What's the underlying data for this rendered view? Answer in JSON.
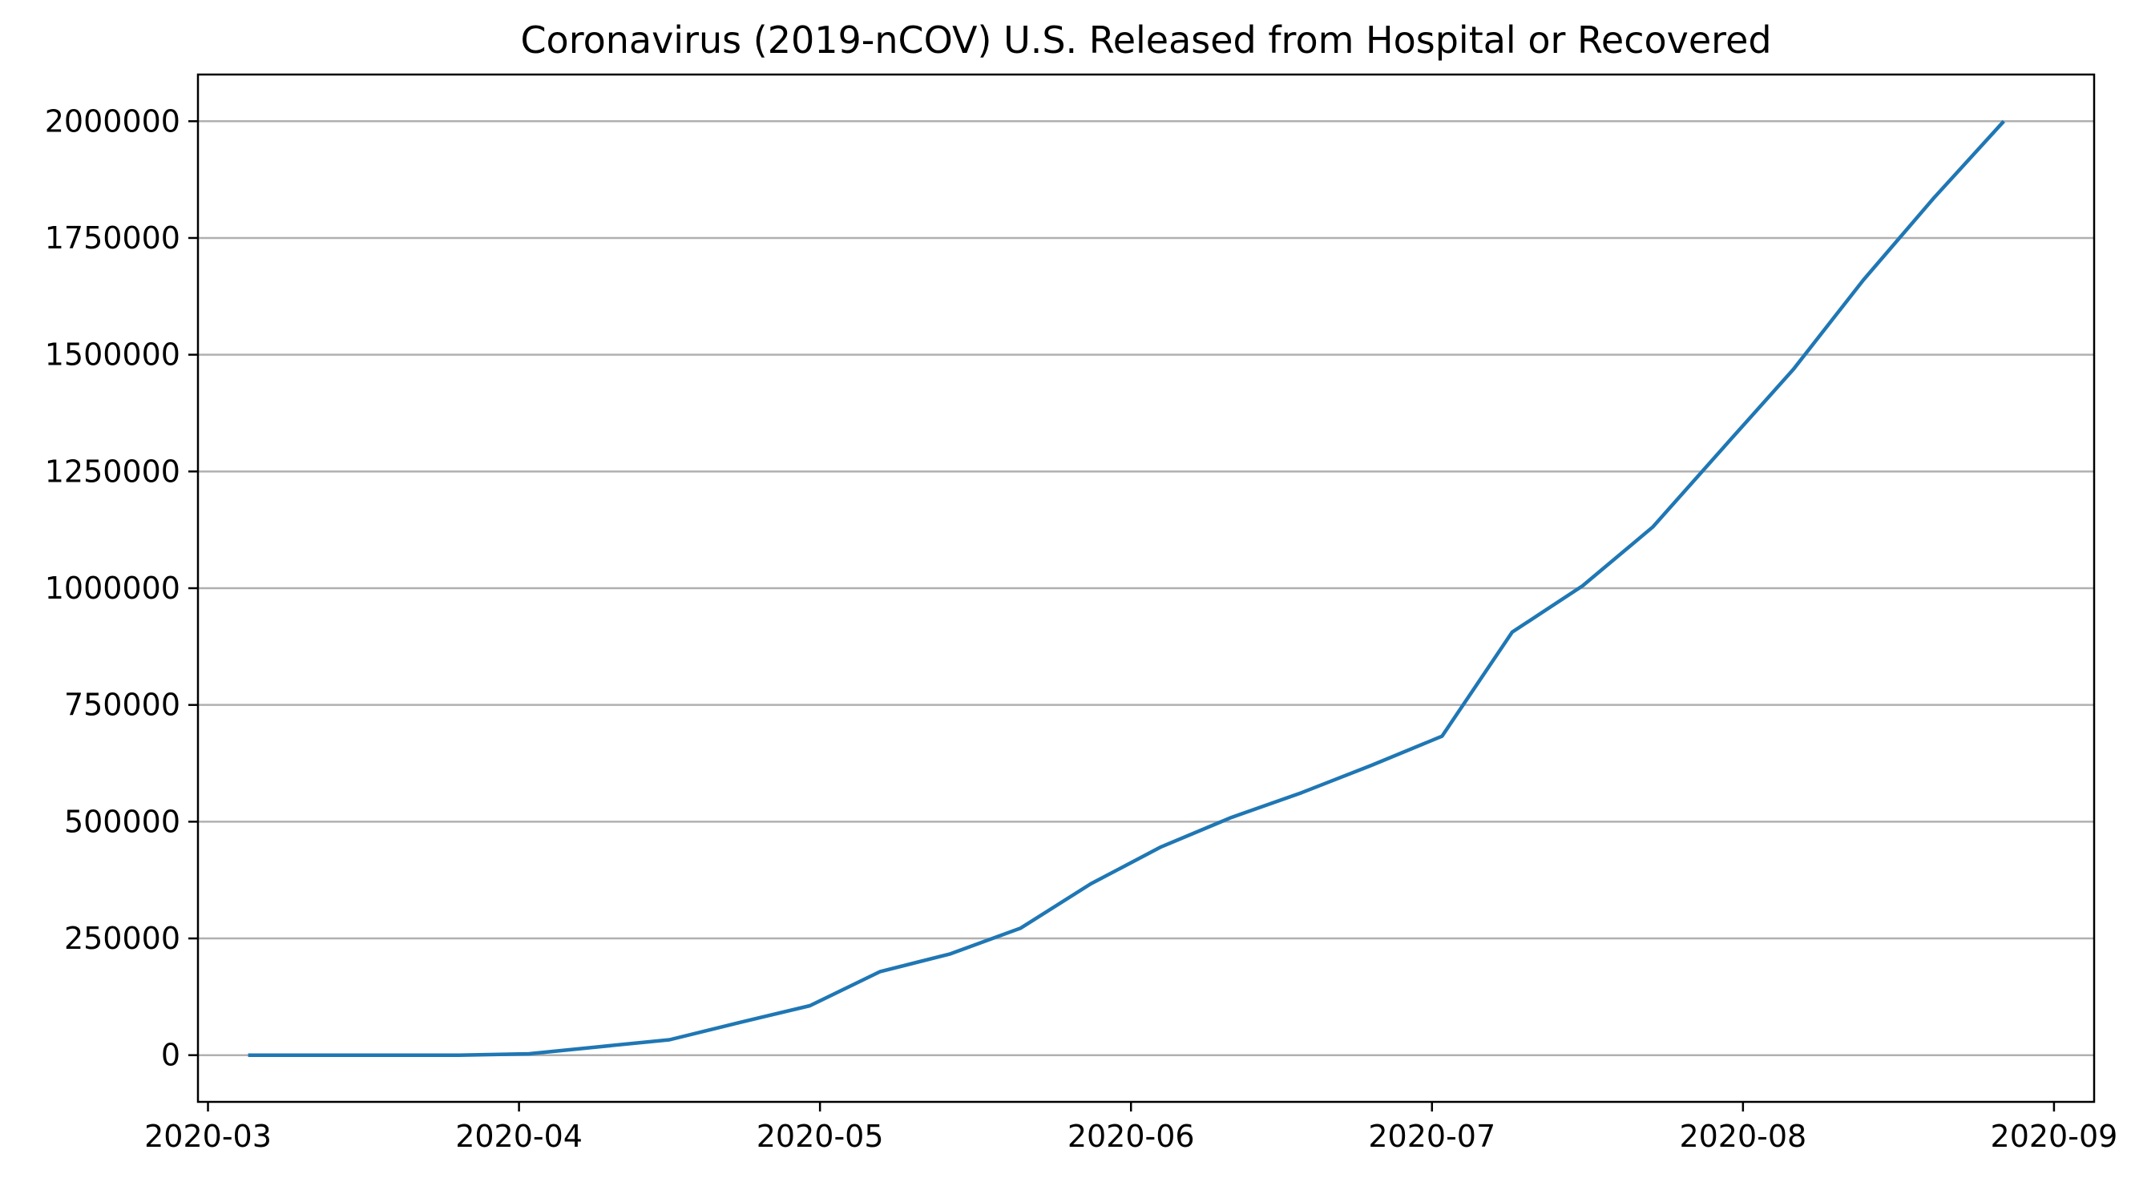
{
  "chart_data": {
    "type": "line",
    "title": "Coronavirus (2019-nCOV) U.S. Released from Hospital or Recovered",
    "xlabel": "",
    "ylabel": "",
    "x_axis": "date",
    "xlim": [
      "2020-02-29",
      "2020-09-05"
    ],
    "ylim": [
      -100000,
      2100000
    ],
    "x_ticks": [
      "2020-03-01",
      "2020-04-01",
      "2020-05-01",
      "2020-06-01",
      "2020-07-01",
      "2020-08-01",
      "2020-09-01"
    ],
    "x_tick_labels": [
      "2020-03",
      "2020-04",
      "2020-05",
      "2020-06",
      "2020-07",
      "2020-08",
      "2020-09"
    ],
    "y_ticks": [
      0,
      250000,
      500000,
      750000,
      1000000,
      1250000,
      1500000,
      1750000,
      2000000
    ],
    "y_tick_labels": [
      "0",
      "250000",
      "500000",
      "750000",
      "1000000",
      "1250000",
      "1500000",
      "1750000",
      "2000000"
    ],
    "grid": "horizontal",
    "legend": "none",
    "series": [
      {
        "color": "#1f77b4",
        "x": [
          "2020-03-05",
          "2020-03-12",
          "2020-03-19",
          "2020-03-26",
          "2020-04-02",
          "2020-04-09",
          "2020-04-16",
          "2020-04-23",
          "2020-04-30",
          "2020-05-07",
          "2020-05-14",
          "2020-05-21",
          "2020-05-28",
          "2020-06-04",
          "2020-06-11",
          "2020-06-18",
          "2020-06-25",
          "2020-07-02",
          "2020-07-09",
          "2020-07-16",
          "2020-07-23",
          "2020-07-30",
          "2020-08-06",
          "2020-08-13",
          "2020-08-20",
          "2020-08-27"
        ],
        "values": [
          0,
          0,
          0,
          0,
          3000,
          18000,
          33000,
          70000,
          106000,
          179000,
          217000,
          272000,
          367000,
          446000,
          509000,
          562000,
          621000,
          683000,
          906000,
          1005000,
          1131000,
          1300000,
          1468000,
          1660000,
          1835000,
          2000000
        ]
      }
    ]
  }
}
